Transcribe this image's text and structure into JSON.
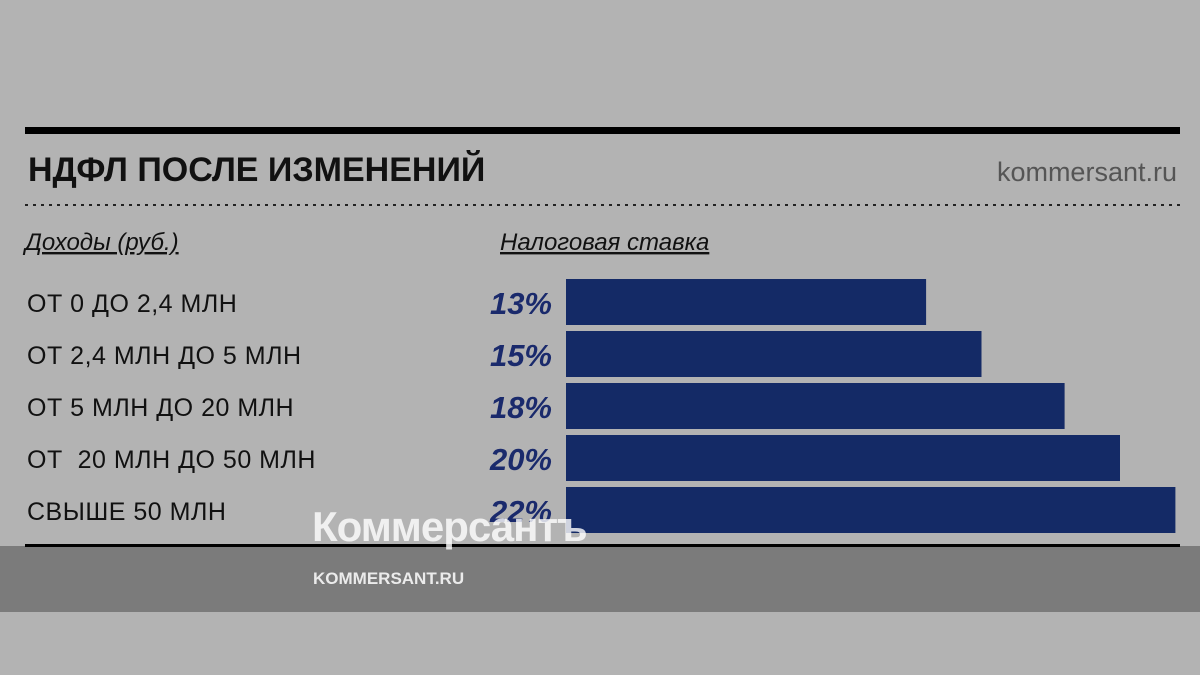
{
  "chart_data": {
    "type": "bar",
    "orientation": "horizontal",
    "title": "НДФЛ ПОСЛЕ ИЗМЕНЕНИЙ",
    "source": "kommersant.ru",
    "category_header": "Доходы (руб.)",
    "value_header": "Налоговая ставка",
    "categories": [
      "ОТ 0 ДО 2,4 МЛН",
      "ОТ 2,4 МЛН ДО 5 МЛН",
      "ОТ 5 МЛН ДО 20 МЛН",
      "ОТ  20 МЛН ДО 50 МЛН",
      "СВЫШЕ 50 МЛН"
    ],
    "values": [
      13,
      15,
      18,
      20,
      22
    ],
    "value_labels": [
      "13%",
      "15%",
      "18%",
      "20%",
      "22%"
    ],
    "color": "#142a66"
  },
  "watermark": {
    "logo": "Коммерсантъ",
    "site": "KOMMERSANT.RU"
  }
}
